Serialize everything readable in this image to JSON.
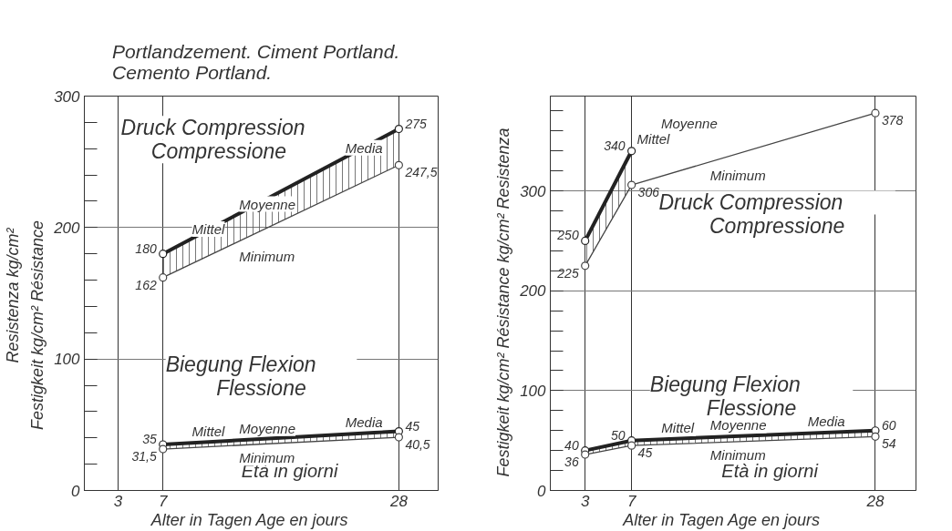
{
  "chart_data": [
    {
      "type": "line",
      "title": "Portlandzement.   Ciment Portland.\nCemento Portland.",
      "xlabel": "Alter in Tagen      Age en jours",
      "ylabel": "Festigkeit        kg/cm²        Résistance",
      "y2label": "Resistenza  kg/cm²",
      "xlim": [
        0,
        31.5
      ],
      "ylim": [
        0,
        300
      ],
      "xticks": [
        3,
        7,
        28
      ],
      "yticks": [
        0,
        100,
        200,
        300
      ],
      "grid": true,
      "marker": "circle",
      "series": [
        {
          "color": "#222222",
          "x": [
            7,
            28
          ],
          "values": [
            180,
            275
          ],
          "lower": [
            162,
            247.5
          ],
          "upper": [
            180,
            275
          ],
          "value_labels": [
            "180",
            "275"
          ]
        },
        {
          "color": "#444444",
          "x": [
            7,
            28
          ],
          "values": [
            162,
            247.5
          ],
          "value_labels": [
            "162",
            "247,5"
          ]
        },
        {
          "color": "#222222",
          "x": [
            7,
            28
          ],
          "values": [
            35,
            45
          ],
          "lower": [
            31.5,
            40.5
          ],
          "upper": [
            35,
            45
          ],
          "value_labels": [
            "35",
            "45"
          ]
        },
        {
          "color": "#444444",
          "x": [
            7,
            28
          ],
          "values": [
            31.5,
            40.5
          ],
          "value_labels": [
            "31,5",
            "40,5"
          ]
        }
      ],
      "annotations": [
        "Druck   Compression\nCompressione",
        "Biegung        Flexion\nFlessione",
        "Età in giorni",
        {
          "text": "Mittel",
          "x": 9.1,
          "y": 189.5
        },
        {
          "text": "Moyenne",
          "x": 13.3,
          "y": 208.5
        },
        {
          "text": "Media",
          "x": 22.75,
          "y": 251.25
        },
        {
          "text": "Minimum",
          "x": 13.3,
          "y": 187.65
        },
        {
          "text": "Mittel",
          "x": 9.1,
          "y": 36
        },
        {
          "text": "Moyenne",
          "x": 13.3,
          "y": 38
        },
        {
          "text": "Media",
          "x": 22.75,
          "y": 42.5
        },
        {
          "text": "Minimum",
          "x": 13.3,
          "y": 34.2
        }
      ]
    },
    {
      "type": "line",
      "xlabel": "Alter in Tagen      Age en jours",
      "ylabel": "Festigkeit  kg/cm²  Résistance  kg/cm²  Resistenza",
      "xlim": [
        0,
        31.5
      ],
      "ylim": [
        0,
        395
      ],
      "xticks": [
        3,
        7,
        28
      ],
      "yticks": [
        0,
        100,
        200,
        300
      ],
      "grid": true,
      "marker": "circle",
      "series": [
        {
          "color": "#222222",
          "x": [
            3,
            7
          ],
          "values": [
            250,
            340
          ],
          "lower": [
            225,
            306
          ],
          "upper": [
            250,
            340
          ],
          "value_labels": [
            "250",
            "340"
          ]
        },
        {
          "color": "#444444",
          "x": [
            3,
            7,
            28
          ],
          "values": [
            225,
            306,
            378
          ],
          "value_labels": [
            "225",
            "306",
            "378"
          ]
        },
        {
          "color": "#222222",
          "x": [
            3,
            7,
            28
          ],
          "values": [
            40,
            50,
            60
          ],
          "lower": [
            36,
            45,
            54
          ],
          "upper": [
            40,
            50,
            60
          ],
          "value_labels": [
            "40",
            "50",
            "60"
          ]
        },
        {
          "color": "#444444",
          "x": [
            3,
            7,
            28
          ],
          "values": [
            36,
            45,
            54
          ],
          "value_labels": [
            "36",
            "45",
            "54"
          ]
        }
      ],
      "annotations": [
        "Moyenne",
        "Druck          Compression\nCompressione",
        "Biegung          Flexion\nFlessione",
        "Età in giorni",
        {
          "text": "Mittel",
          "x": 7,
          "y": 340
        },
        {
          "text": "Minimum",
          "x": 13.3,
          "y": 327.6
        },
        {
          "text": "Mittel",
          "x": 9.1,
          "y": 51
        },
        {
          "text": "Moyenne",
          "x": 13.3,
          "y": 53
        },
        {
          "text": "Media",
          "x": 21.7,
          "y": 57
        },
        {
          "text": "Minimum",
          "x": 13.3,
          "y": 47.7
        }
      ]
    }
  ]
}
